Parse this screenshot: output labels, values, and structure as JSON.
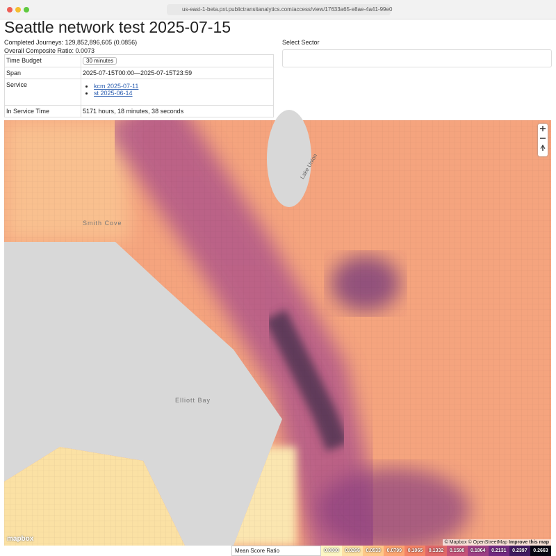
{
  "browser": {
    "url": "us-east-1-beta.pxt.publictransitanalytics.com/access/view/17633a65-e8ae-4a41-99e0"
  },
  "page": {
    "title": "Seattle network test 2025-07-15",
    "completed_journeys": "Completed Journeys: 129,852,896,605 (0.0856)",
    "composite_ratio": "Overall Composite Ratio: 0.0073"
  },
  "table": {
    "rows": [
      [
        "Time Budget",
        "30 minutes"
      ],
      [
        "Span",
        "2025-07-15T00:00—2025-07-15T23:59"
      ],
      [
        "Service",
        [
          "kcm 2025-07-11",
          "st 2025-06-14"
        ]
      ],
      [
        "In Service Time",
        "5171 hours, 18 minutes, 38 seconds"
      ]
    ]
  },
  "sector": {
    "label": "Select Sector"
  },
  "map": {
    "labels": [
      "Smith Cove",
      "Elliott Bay",
      "Lake Union"
    ],
    "logo": "mapbox",
    "attribution": [
      "© Mapbox",
      "© OpenStreetMap",
      "Improve this map"
    ]
  },
  "legend": {
    "metric": "Mean Score Ratio",
    "stops": [
      {
        "label": "0.0000",
        "color": "#fcf7c4"
      },
      {
        "label": "0.0266",
        "color": "#fde1a6"
      },
      {
        "label": "0.0533",
        "color": "#fec889"
      },
      {
        "label": "0.0799",
        "color": "#fca572"
      },
      {
        "label": "0.1065",
        "color": "#f48466"
      },
      {
        "label": "0.1332",
        "color": "#e06868"
      },
      {
        "label": "0.1598",
        "color": "#c45278"
      },
      {
        "label": "0.1864",
        "color": "#9c3f84"
      },
      {
        "label": "0.2131",
        "color": "#722b80"
      },
      {
        "label": "0.2397",
        "color": "#411a60"
      },
      {
        "label": "0.2663",
        "color": "#0a0612"
      }
    ]
  }
}
